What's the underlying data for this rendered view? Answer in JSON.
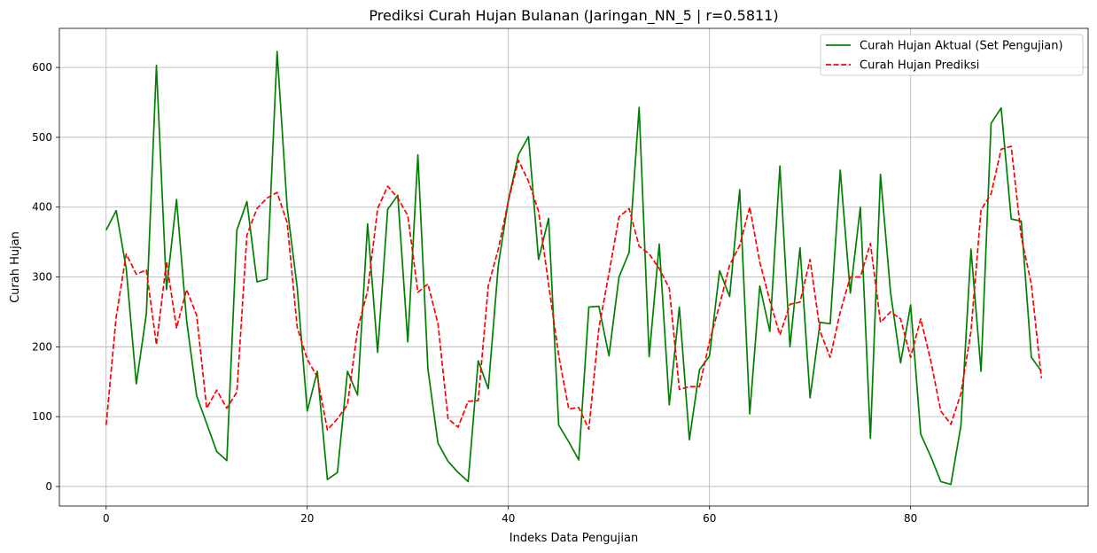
{
  "chart_data": {
    "type": "line",
    "title": "Prediksi Curah Hujan Bulanan (Jaringan_NN_5 | r=0.5811)",
    "xlabel": "Indeks Data Pengujian",
    "ylabel": "Curah Hujan",
    "xlim": [
      -4.65,
      97.65
    ],
    "ylim": [
      -28,
      656
    ],
    "xticks": [
      0,
      20,
      40,
      60,
      80
    ],
    "yticks": [
      0,
      100,
      200,
      300,
      400,
      500,
      600
    ],
    "xtick_labels": [
      "0",
      "20",
      "40",
      "60",
      "80"
    ],
    "ytick_labels": [
      "0",
      "100",
      "200",
      "300",
      "400",
      "500",
      "600"
    ],
    "grid": true,
    "legend_position": "top-right",
    "series": [
      {
        "name": "Curah Hujan Aktual (Set Pengujian)",
        "color": "#008000",
        "style": "solid",
        "x": [
          0,
          1,
          2,
          3,
          4,
          5,
          6,
          7,
          8,
          9,
          10,
          11,
          12,
          13,
          14,
          15,
          16,
          17,
          18,
          19,
          20,
          21,
          22,
          23,
          24,
          25,
          26,
          27,
          28,
          29,
          30,
          31,
          32,
          33,
          34,
          35,
          36,
          37,
          38,
          39,
          40,
          41,
          42,
          43,
          44,
          45,
          46,
          47,
          48,
          49,
          50,
          51,
          52,
          53,
          54,
          55,
          56,
          57,
          58,
          59,
          60,
          61,
          62,
          63,
          64,
          65,
          66,
          67,
          68,
          69,
          70,
          71,
          72,
          73,
          74,
          75,
          76,
          77,
          78,
          79,
          80,
          81,
          82,
          83,
          84,
          85,
          86,
          87,
          88,
          89,
          90,
          91,
          92,
          93
        ],
        "values": [
          367,
          395,
          312,
          147,
          247,
          603,
          282,
          411,
          238,
          130,
          90,
          50,
          37,
          367,
          408,
          293,
          297,
          623,
          400,
          285,
          108,
          165,
          10,
          20,
          165,
          131,
          376,
          192,
          397,
          417,
          207,
          475,
          168,
          62,
          36,
          20,
          7,
          180,
          140,
          317,
          410,
          475,
          501,
          325,
          384,
          88,
          64,
          38,
          257,
          258,
          187,
          300,
          335,
          543,
          186,
          347,
          117,
          257,
          67,
          167,
          187,
          309,
          272,
          425,
          104,
          287,
          222,
          459,
          200,
          342,
          127,
          235,
          233,
          453,
          277,
          400,
          69,
          447,
          278,
          177,
          260,
          75,
          43,
          7,
          3,
          87,
          340,
          165,
          520,
          542,
          383,
          380,
          185,
          165
        ]
      },
      {
        "name": "Curah Hujan Prediksi",
        "color": "#ff0000",
        "style": "dashed",
        "x": [
          0,
          1,
          2,
          3,
          4,
          5,
          6,
          7,
          8,
          9,
          10,
          11,
          12,
          13,
          14,
          15,
          16,
          17,
          18,
          19,
          20,
          21,
          22,
          23,
          24,
          25,
          26,
          27,
          28,
          29,
          30,
          31,
          32,
          33,
          34,
          35,
          36,
          37,
          38,
          39,
          40,
          41,
          42,
          43,
          44,
          45,
          46,
          47,
          48,
          49,
          50,
          51,
          52,
          53,
          54,
          55,
          56,
          57,
          58,
          59,
          60,
          61,
          62,
          63,
          64,
          65,
          66,
          67,
          68,
          69,
          70,
          71,
          72,
          73,
          74,
          75,
          76,
          77,
          78,
          79,
          80,
          81,
          82,
          83,
          84,
          85,
          86,
          87,
          88,
          89,
          90,
          91,
          92,
          93
        ],
        "values": [
          88,
          243,
          333,
          304,
          310,
          203,
          322,
          227,
          282,
          245,
          112,
          138,
          112,
          135,
          360,
          398,
          413,
          421,
          378,
          228,
          182,
          157,
          81,
          97,
          117,
          225,
          280,
          398,
          430,
          413,
          388,
          278,
          290,
          233,
          97,
          85,
          122,
          123,
          287,
          340,
          409,
          467,
          437,
          394,
          289,
          188,
          111,
          113,
          82,
          227,
          305,
          386,
          398,
          344,
          333,
          312,
          284,
          139,
          143,
          143,
          208,
          260,
          317,
          345,
          400,
          321,
          266,
          217,
          261,
          264,
          325,
          222,
          185,
          250,
          300,
          300,
          348,
          235,
          250,
          240,
          185,
          240,
          180,
          108,
          89,
          133,
          222,
          396,
          419,
          483,
          487,
          357,
          290,
          155
        ]
      }
    ]
  }
}
